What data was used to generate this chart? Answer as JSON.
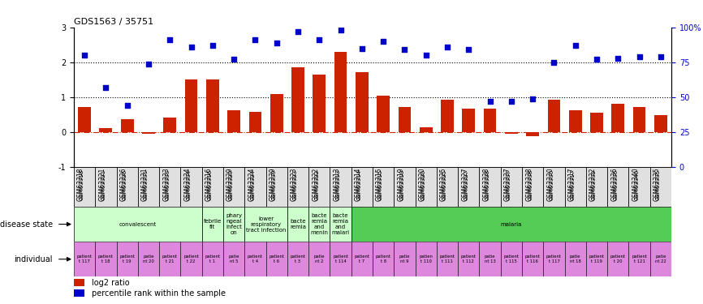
{
  "title": "GDS1563 / 35751",
  "samples": [
    "GSM63318",
    "GSM63321",
    "GSM63326",
    "GSM63331",
    "GSM63333",
    "GSM63334",
    "GSM63316",
    "GSM63329",
    "GSM63324",
    "GSM63339",
    "GSM63323",
    "GSM63322",
    "GSM63313",
    "GSM63314",
    "GSM63315",
    "GSM63319",
    "GSM63320",
    "GSM63325",
    "GSM63327",
    "GSM63328",
    "GSM63337",
    "GSM63338",
    "GSM63330",
    "GSM63317",
    "GSM63332",
    "GSM63336",
    "GSM63340",
    "GSM63335"
  ],
  "log2_ratio": [
    0.72,
    0.12,
    0.37,
    -0.05,
    0.42,
    1.52,
    1.5,
    0.64,
    0.58,
    1.09,
    1.85,
    1.65,
    2.3,
    1.72,
    1.05,
    0.72,
    0.15,
    0.92,
    0.68,
    0.68,
    -0.05,
    -0.12,
    0.94,
    0.63,
    0.57,
    0.82,
    0.72,
    0.5
  ],
  "percentile_rank_right": [
    80,
    57,
    44,
    74,
    91,
    86,
    87,
    77,
    91,
    89,
    97,
    91,
    98,
    85,
    90,
    84,
    80,
    86,
    84,
    47,
    47,
    49,
    75,
    87,
    77,
    78,
    79,
    79
  ],
  "disease_groups": [
    {
      "label": "convalescent",
      "start": 0,
      "end": 5,
      "color": "#ccffcc"
    },
    {
      "label": "febrile\nfit",
      "start": 6,
      "end": 6,
      "color": "#ccffcc"
    },
    {
      "label": "phary\nngeal\ninfect\non",
      "start": 7,
      "end": 7,
      "color": "#ccffcc"
    },
    {
      "label": "lower\nrespiratory\ntract infection",
      "start": 8,
      "end": 9,
      "color": "#ccffcc"
    },
    {
      "label": "bacte\nremia",
      "start": 10,
      "end": 10,
      "color": "#ccffcc"
    },
    {
      "label": "bacte\nremia\nand\nmenin",
      "start": 11,
      "end": 11,
      "color": "#ccffcc"
    },
    {
      "label": "bacte\nremia\nand\nmalari",
      "start": 12,
      "end": 12,
      "color": "#ccffcc"
    },
    {
      "label": "malaria",
      "start": 13,
      "end": 27,
      "color": "#55cc55"
    }
  ],
  "individual_labels": [
    "patient\nt 117",
    "patient\nt 18",
    "patient\nt 19",
    "patie\nnt 20",
    "patient\nt 21",
    "patient\nt 22",
    "patient\nt 1",
    "patie\nnt 5",
    "patient\nt 4",
    "patient\nt 6",
    "patient\nt 3",
    "patie\nnt 2",
    "patient\nt 114",
    "patient\nt 7",
    "patient\nt 8",
    "patie\nnt 9",
    "patien\nt 110",
    "patient\nt 111",
    "patient\nt 112",
    "patie\nnt 13",
    "patient\nt 115",
    "patient\nt 116",
    "patient\nt 117",
    "patie\nnt 18",
    "patient\nt 119",
    "patient\nt 20",
    "patient\nt 121",
    "patie\nnt 22"
  ],
  "bar_color": "#cc2200",
  "scatter_color": "#0000cc",
  "ylim_left": [
    -1,
    3
  ],
  "right_yticks": [
    0,
    25,
    50,
    75,
    100
  ],
  "right_yticklabels": [
    "0",
    "25",
    "50",
    "75",
    "100%"
  ],
  "left_yticks": [
    -1,
    0,
    1,
    2,
    3
  ],
  "left_yticklabels": [
    "-1",
    "0",
    "1",
    "2",
    "3"
  ]
}
